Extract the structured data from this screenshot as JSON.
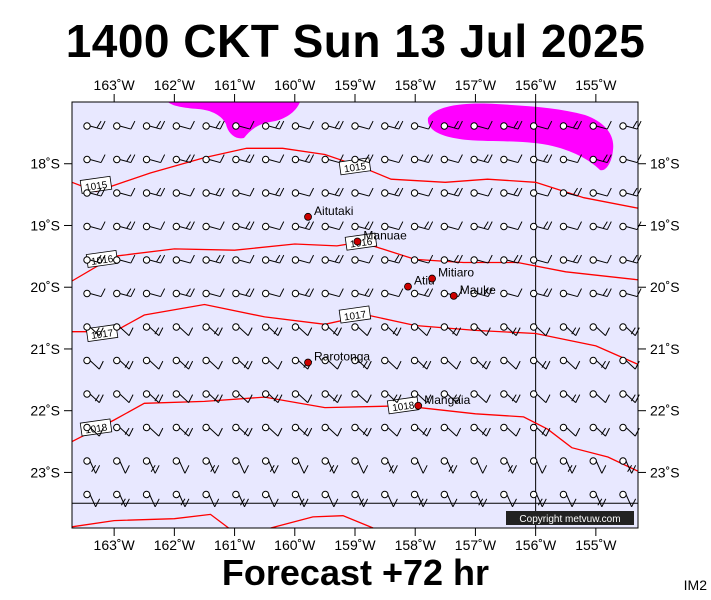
{
  "title": "1400 CKT Sun 13 Jul 2025",
  "footer": "Forecast +72 hr",
  "corner_code": "IM2",
  "copyright": "Copyright metvuw.com",
  "colors": {
    "ocean": "#e8e8ff",
    "isobar": "#ff0000",
    "rain": "#ff00ff",
    "town": "#cc0000",
    "frame": "#000000"
  },
  "map": {
    "lon_min": -163.7,
    "lon_max": -154.3,
    "lat_max": -17.0,
    "lat_min": -23.9,
    "lon_ticks": [
      {
        "lon": -163,
        "label": "163˚W"
      },
      {
        "lon": -162,
        "label": "162˚W"
      },
      {
        "lon": -161,
        "label": "161˚W"
      },
      {
        "lon": -160,
        "label": "160˚W"
      },
      {
        "lon": -159,
        "label": "159˚W"
      },
      {
        "lon": -158,
        "label": "158˚W"
      },
      {
        "lon": -157,
        "label": "157˚W"
      },
      {
        "lon": -156,
        "label": "156˚W"
      },
      {
        "lon": -155,
        "label": "155˚W"
      }
    ],
    "lat_ticks": [
      {
        "lat": -18,
        "label": "18˚S"
      },
      {
        "lat": -19,
        "label": "19˚S"
      },
      {
        "lat": -20,
        "label": "20˚S"
      },
      {
        "lat": -21,
        "label": "21˚S"
      },
      {
        "lat": -22,
        "label": "22˚S"
      },
      {
        "lat": -23,
        "label": "23˚S"
      }
    ],
    "grid_lon": -156,
    "grid_lat": -23.5,
    "towns": [
      {
        "name": "Aitutaki",
        "lon": -159.78,
        "lat": -18.86
      },
      {
        "name": "Manuae",
        "lon": -158.96,
        "lat": -19.26
      },
      {
        "name": "Atiu",
        "lon": -158.12,
        "lat": -19.99
      },
      {
        "name": "Mitiaro",
        "lon": -157.72,
        "lat": -19.86
      },
      {
        "name": "Mauke",
        "lon": -157.36,
        "lat": -20.14
      },
      {
        "name": "Rarotonga",
        "lon": -159.78,
        "lat": -21.22
      },
      {
        "name": "Mangaia",
        "lon": -157.95,
        "lat": -21.92
      }
    ],
    "isobars": [
      {
        "label": "1015",
        "label_lon": -159.0,
        "label_lat": -18.05,
        "points": [
          [
            -163.7,
            -18.3
          ],
          [
            -163.3,
            -18.45
          ],
          [
            -162.4,
            -18.15
          ],
          [
            -161.5,
            -17.9
          ],
          [
            -160.8,
            -17.75
          ],
          [
            -160.2,
            -17.75
          ],
          [
            -159.5,
            -17.85
          ],
          [
            -158.9,
            -18.05
          ],
          [
            -158.4,
            -18.25
          ],
          [
            -157.5,
            -18.3
          ],
          [
            -156.8,
            -18.25
          ],
          [
            -156.0,
            -18.3
          ],
          [
            -155.2,
            -18.55
          ],
          [
            -154.3,
            -18.72
          ]
        ]
      },
      {
        "label": "1015",
        "label_lon": -163.3,
        "label_lat": -18.35,
        "label_only": true
      },
      {
        "label": "1016",
        "label_lon": -163.2,
        "label_lat": -19.55,
        "points": [
          [
            -163.7,
            -19.9
          ],
          [
            -163.0,
            -19.5
          ],
          [
            -162.0,
            -19.38
          ],
          [
            -161.0,
            -19.4
          ],
          [
            -160.0,
            -19.3
          ],
          [
            -159.3,
            -19.33
          ],
          [
            -158.9,
            -19.27
          ],
          [
            -158.0,
            -19.55
          ],
          [
            -157.2,
            -19.6
          ],
          [
            -156.3,
            -19.6
          ],
          [
            -155.5,
            -19.75
          ],
          [
            -154.3,
            -19.88
          ]
        ]
      },
      {
        "label": "1016",
        "label_lon": -158.9,
        "label_lat": -19.27,
        "label_only": true
      },
      {
        "label": "1017",
        "label_lon": -159.0,
        "label_lat": -20.45,
        "points": [
          [
            -163.7,
            -20.72
          ],
          [
            -163.0,
            -20.72
          ],
          [
            -162.5,
            -20.45
          ],
          [
            -161.5,
            -20.28
          ],
          [
            -160.5,
            -20.48
          ],
          [
            -159.5,
            -20.6
          ],
          [
            -158.8,
            -20.45
          ],
          [
            -158.0,
            -20.62
          ],
          [
            -157.0,
            -20.7
          ],
          [
            -156.0,
            -20.75
          ],
          [
            -155.0,
            -20.95
          ],
          [
            -154.3,
            -21.25
          ]
        ]
      },
      {
        "label": "1017",
        "label_lon": -163.2,
        "label_lat": -20.75,
        "label_only": true
      },
      {
        "label": "1018",
        "label_lon": -158.2,
        "label_lat": -21.92,
        "points": [
          [
            -163.7,
            -22.5
          ],
          [
            -163.0,
            -22.15
          ],
          [
            -162.5,
            -21.88
          ],
          [
            -161.5,
            -21.85
          ],
          [
            -160.5,
            -21.78
          ],
          [
            -159.5,
            -21.95
          ],
          [
            -158.2,
            -21.92
          ],
          [
            -157.0,
            -22.05
          ],
          [
            -156.2,
            -22.1
          ],
          [
            -155.8,
            -22.3
          ],
          [
            -155.4,
            -22.6
          ],
          [
            -154.8,
            -22.75
          ],
          [
            -154.3,
            -22.98
          ]
        ]
      },
      {
        "label": "1018",
        "label_lon": -163.3,
        "label_lat": -22.28,
        "label_only": true
      },
      {
        "label": "",
        "points": [
          [
            -163.7,
            -23.88
          ],
          [
            -163.0,
            -23.78
          ],
          [
            -162.0,
            -23.75
          ],
          [
            -161.4,
            -23.68
          ],
          [
            -161.1,
            -23.9
          ]
        ]
      },
      {
        "label": "",
        "points": [
          [
            -160.4,
            -23.9
          ],
          [
            -159.7,
            -23.72
          ],
          [
            -159.2,
            -23.7
          ],
          [
            -158.7,
            -23.9
          ]
        ]
      }
    ]
  }
}
